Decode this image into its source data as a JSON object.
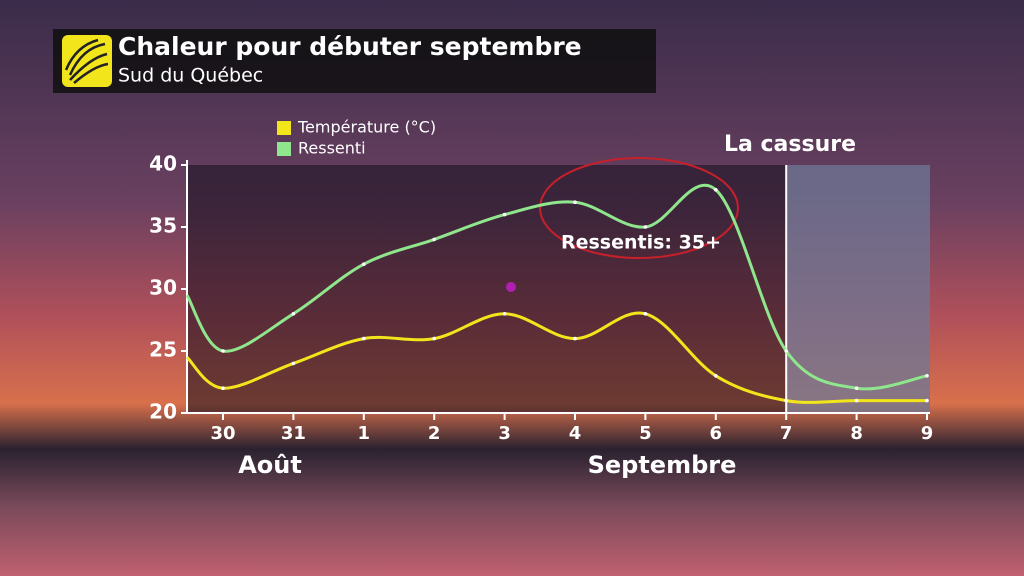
{
  "chart_data": {
    "type": "line",
    "title": "Chaleur pour débuter septembre",
    "subtitle": "Sud du Québec",
    "categories": [
      null,
      "30",
      "31",
      "1",
      "2",
      "3",
      "4",
      "5",
      "6",
      "7",
      "8",
      "9"
    ],
    "series": [
      {
        "name": "Température (°C)",
        "color": "#f2e51c",
        "values": [
          24.5,
          22,
          24,
          26,
          26,
          28,
          26,
          28,
          23,
          21,
          21,
          21
        ]
      },
      {
        "name": "Ressenti",
        "color": "#8fe68c",
        "values": [
          29.5,
          25,
          28,
          32,
          34,
          36,
          37,
          35,
          38,
          25,
          22,
          23
        ]
      }
    ],
    "ylim": [
      20,
      40
    ],
    "yticks": [
      20,
      25,
      30,
      35,
      40
    ],
    "annotations": {
      "break": "La cassure",
      "callout": "Ressentis: 35+",
      "month1": "Août",
      "month2": "Septembre"
    }
  }
}
